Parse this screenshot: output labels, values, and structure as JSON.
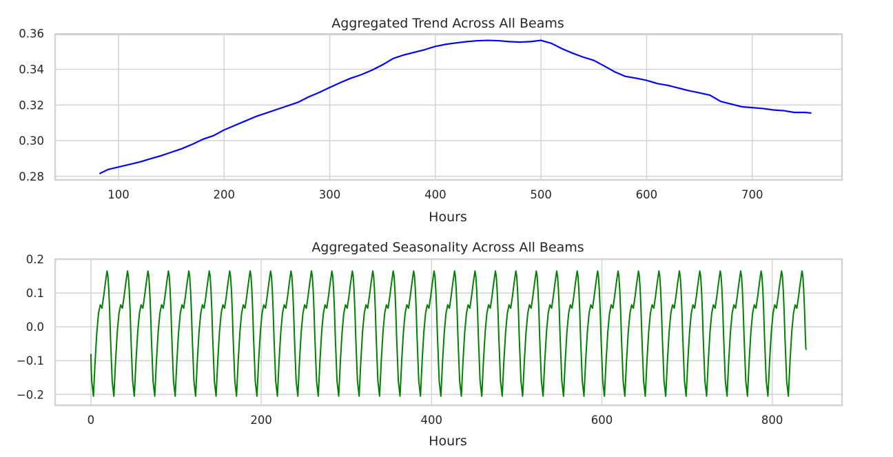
{
  "chart_data": [
    {
      "type": "line",
      "title": "Aggregated Trend Across All Beams",
      "xlabel": "Hours",
      "ylabel": "",
      "xlim": [
        40,
        785
      ],
      "ylim": [
        0.278,
        0.3595
      ],
      "xticks": [
        100,
        200,
        300,
        400,
        500,
        600,
        700
      ],
      "yticks": [
        0.28,
        0.3,
        0.32,
        0.34,
        0.36
      ],
      "ytick_labels": [
        "0.28",
        "0.30",
        "0.32",
        "0.34",
        "0.36"
      ],
      "grid": true,
      "series": [
        {
          "color": "#0000ff",
          "x": [
            82,
            90,
            100,
            110,
            120,
            130,
            140,
            150,
            160,
            170,
            180,
            190,
            200,
            210,
            220,
            230,
            240,
            250,
            260,
            270,
            280,
            290,
            300,
            310,
            320,
            330,
            340,
            350,
            360,
            370,
            380,
            390,
            400,
            410,
            420,
            430,
            440,
            450,
            460,
            470,
            480,
            490,
            500,
            510,
            520,
            530,
            540,
            550,
            560,
            570,
            580,
            590,
            600,
            610,
            620,
            630,
            640,
            650,
            660,
            670,
            680,
            690,
            700,
            710,
            720,
            730,
            740,
            750,
            756
          ],
          "y": [
            0.2815,
            0.2838,
            0.2852,
            0.2866,
            0.288,
            0.2898,
            0.2915,
            0.2935,
            0.2955,
            0.298,
            0.3008,
            0.3028,
            0.306,
            0.3085,
            0.311,
            0.3135,
            0.3155,
            0.3175,
            0.3195,
            0.3215,
            0.3245,
            0.327,
            0.3298,
            0.3325,
            0.335,
            0.337,
            0.3395,
            0.3425,
            0.346,
            0.348,
            0.3495,
            0.351,
            0.3528,
            0.354,
            0.3548,
            0.3555,
            0.356,
            0.3562,
            0.356,
            0.3555,
            0.3552,
            0.3555,
            0.3562,
            0.3545,
            0.3515,
            0.349,
            0.3468,
            0.345,
            0.3418,
            0.3385,
            0.336,
            0.335,
            0.3338,
            0.332,
            0.331,
            0.3295,
            0.328,
            0.3268,
            0.3255,
            0.322,
            0.3205,
            0.319,
            0.3185,
            0.318,
            0.3172,
            0.3168,
            0.3158,
            0.3158,
            0.3155
          ]
        }
      ]
    },
    {
      "type": "line",
      "title": "Aggregated Seasonality Across All Beams",
      "xlabel": "Hours",
      "ylabel": "",
      "xlim": [
        -42,
        882
      ],
      "ylim": [
        -0.232,
        0.2
      ],
      "xticks": [
        0,
        200,
        400,
        600,
        800
      ],
      "yticks": [
        -0.2,
        -0.1,
        0.0,
        0.1,
        0.2
      ],
      "ytick_labels": [
        "−0.2",
        "−0.1",
        "0.0",
        "0.1",
        "0.2"
      ],
      "grid": true,
      "series": [
        {
          "color": "#008000",
          "period_hours": 24,
          "x_range": [
            0,
            840
          ],
          "start_value": -0.08,
          "end_value": -0.068,
          "cycle_shape_x": [
            0,
            2,
            4,
            6,
            8,
            10,
            12,
            14,
            16,
            17,
            18,
            19,
            20,
            22,
            24
          ],
          "cycle_shape_y": [
            -0.205,
            -0.1,
            -0.015,
            0.04,
            0.065,
            0.055,
            0.09,
            0.13,
            0.165,
            0.15,
            0.11,
            0.05,
            -0.03,
            -0.16,
            -0.205
          ]
        }
      ]
    }
  ]
}
